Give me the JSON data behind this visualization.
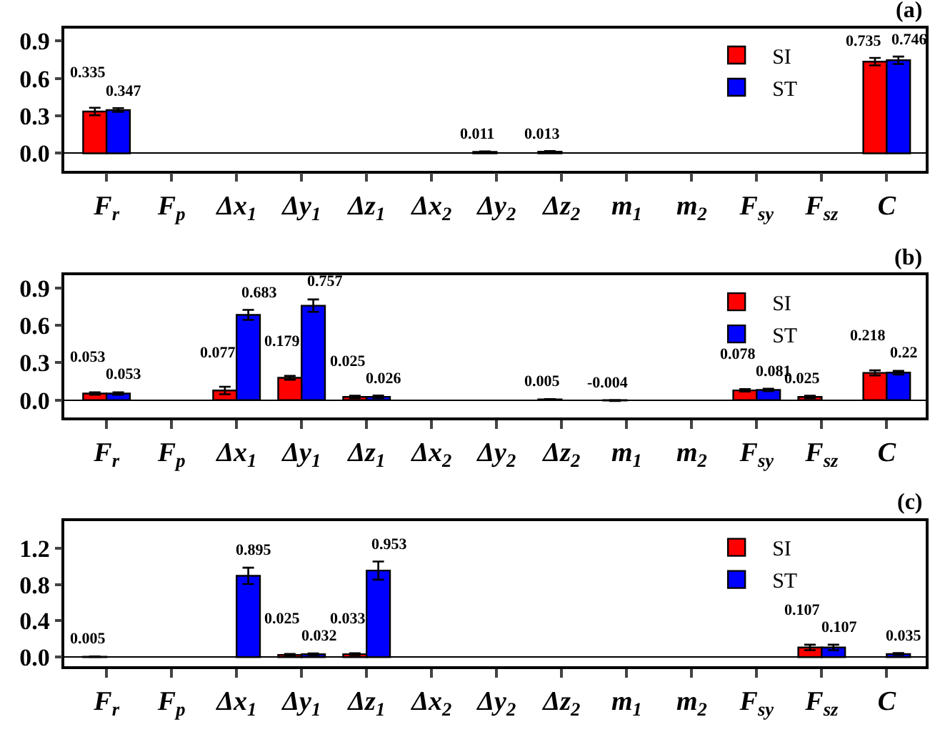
{
  "chart_data": [
    {
      "type": "bar",
      "title": "(a)",
      "categories": [
        "F$_{r}$",
        "F$_{p}$",
        "Δx$_{1}$",
        "Δy$_{1}$",
        "Δz$_{1}$",
        "Δx$_{2}$",
        "Δy$_{2}$",
        "Δz$_{2}$",
        "m$_{1}$",
        "m$_{2}$",
        "F$_{sy}$",
        "F$_{sz}$",
        "C"
      ],
      "series": [
        {
          "name": "SI",
          "color": "#ff0000",
          "values": [
            0.335,
            null,
            null,
            null,
            null,
            null,
            0.011,
            0.013,
            null,
            null,
            null,
            null,
            0.735
          ],
          "errors": [
            0.03,
            null,
            null,
            null,
            null,
            null,
            0.005,
            0.005,
            null,
            null,
            null,
            null,
            0.03
          ],
          "value_labels": [
            "0.335",
            null,
            null,
            null,
            null,
            null,
            "0.011",
            "0.013",
            null,
            null,
            null,
            null,
            "0.735"
          ]
        },
        {
          "name": "ST",
          "color": "#0000ff",
          "values": [
            0.347,
            null,
            null,
            null,
            null,
            null,
            null,
            null,
            null,
            null,
            null,
            null,
            0.746
          ],
          "errors": [
            0.015,
            null,
            null,
            null,
            null,
            null,
            null,
            null,
            null,
            null,
            null,
            null,
            0.03
          ],
          "value_labels": [
            "0.347",
            null,
            null,
            null,
            null,
            null,
            null,
            null,
            null,
            null,
            null,
            null,
            "0.746"
          ]
        }
      ],
      "ylim": [
        -0.14,
        1.0
      ],
      "yticks": [
        {
          "value": 0,
          "label": "0.0"
        },
        0.3,
        0.6,
        0.9
      ],
      "legend": "top right"
    },
    {
      "type": "bar",
      "title": "(b)",
      "categories": [
        "F$_{r}$",
        "F$_{p}$",
        "Δx$_{1}$",
        "Δy$_{1}$",
        "Δz$_{1}$",
        "Δx$_{2}$",
        "Δy$_{2}$",
        "Δz$_{2}$",
        "m$_{1}$",
        "m$_{2}$",
        "F$_{sy}$",
        "F$_{sz}$",
        "C"
      ],
      "series": [
        {
          "name": "SI",
          "color": "#ff0000",
          "values": [
            0.053,
            null,
            0.077,
            0.179,
            0.025,
            null,
            null,
            0.005,
            -0.004,
            null,
            0.078,
            0.025,
            0.218
          ],
          "errors": [
            0.01,
            null,
            0.03,
            0.015,
            0.01,
            null,
            null,
            0.003,
            0.003,
            null,
            0.01,
            0.01,
            0.02
          ],
          "value_labels": [
            "0.053",
            null,
            "0.077",
            "0.179",
            "0.025",
            null,
            null,
            "0.005",
            "-0.004",
            null,
            "0.078",
            "0.025",
            "0.218"
          ]
        },
        {
          "name": "ST",
          "color": "#0000ff",
          "values": [
            0.053,
            null,
            0.683,
            0.757,
            0.026,
            null,
            null,
            null,
            null,
            null,
            0.081,
            null,
            0.22
          ],
          "errors": [
            0.01,
            null,
            0.04,
            0.05,
            0.01,
            null,
            null,
            null,
            null,
            null,
            0.01,
            null,
            0.015
          ],
          "value_labels": [
            "0.053",
            null,
            "0.683",
            "0.757",
            "0.026",
            null,
            null,
            null,
            null,
            null,
            "0.081",
            null,
            "0.22"
          ]
        }
      ],
      "ylim": [
        -0.14,
        1.0
      ],
      "yticks": [
        {
          "value": 0,
          "label": "0.0"
        },
        0.3,
        0.6,
        0.9
      ],
      "legend": "top right"
    },
    {
      "type": "bar",
      "title": "(c)",
      "categories": [
        "F$_{r}$",
        "F$_{p}$",
        "Δx$_{1}$",
        "Δy$_{1}$",
        "Δz$_{1}$",
        "Δx$_{2}$",
        "Δy$_{2}$",
        "Δz$_{2}$",
        "m$_{1}$",
        "m$_{2}$",
        "F$_{sy}$",
        "F$_{sz}$",
        "C"
      ],
      "series": [
        {
          "name": "SI",
          "color": "#ff0000",
          "values": [
            0.005,
            null,
            null,
            0.025,
            0.033,
            null,
            null,
            null,
            null,
            null,
            null,
            0.107,
            null
          ],
          "errors": [
            0.003,
            null,
            null,
            0.01,
            0.01,
            null,
            null,
            null,
            null,
            null,
            null,
            0.03,
            null
          ],
          "value_labels": [
            "0.005",
            null,
            null,
            "0.025",
            "0.033",
            null,
            null,
            null,
            null,
            null,
            null,
            "0.107",
            null
          ]
        },
        {
          "name": "ST",
          "color": "#0000ff",
          "values": [
            null,
            null,
            0.895,
            0.032,
            0.953,
            null,
            null,
            null,
            null,
            null,
            null,
            0.107,
            0.035
          ],
          "errors": [
            null,
            null,
            0.09,
            0.01,
            0.1,
            null,
            null,
            null,
            null,
            null,
            null,
            0.03,
            0.01
          ],
          "value_labels": [
            null,
            null,
            "0.895",
            "0.032",
            "0.953",
            null,
            null,
            null,
            null,
            null,
            null,
            "0.107",
            "0.035"
          ]
        }
      ],
      "ylim": [
        -0.1,
        1.5
      ],
      "yticks": [
        {
          "value": 0,
          "label": "0.0"
        },
        {
          "value": 0.4,
          "label": "0.4"
        },
        {
          "value": 0.8,
          "label": "0.8"
        },
        {
          "value": 1.2,
          "label": "1.2"
        }
      ],
      "legend": "top right"
    }
  ]
}
